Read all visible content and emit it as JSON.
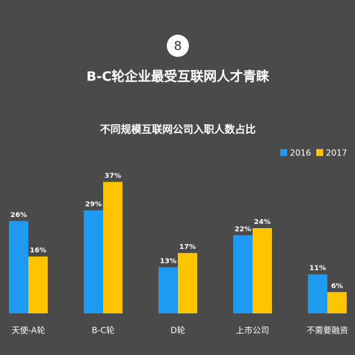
{
  "header": {
    "badge": "8",
    "title": "B-C轮企业最受互联网人才青睐"
  },
  "chart_data": {
    "type": "bar",
    "title": "不同规模互联网公司入职人数占比",
    "categories": [
      "天使-A轮",
      "B-C轮",
      "D轮",
      "上市公司",
      "不需要融资"
    ],
    "series": [
      {
        "name": "2016",
        "color": "#1e9bf0",
        "values": [
          26,
          29,
          13,
          22,
          11
        ],
        "value_labels": [
          "26%",
          "29%",
          "13%",
          "22%",
          "11%"
        ]
      },
      {
        "name": "2017",
        "color": "#ffc400",
        "values": [
          16,
          37,
          17,
          24,
          6
        ],
        "value_labels": [
          "16%",
          "37%",
          "17%",
          "24%",
          "6%"
        ]
      }
    ],
    "ylim": [
      0,
      40
    ],
    "legend": "top-right"
  }
}
